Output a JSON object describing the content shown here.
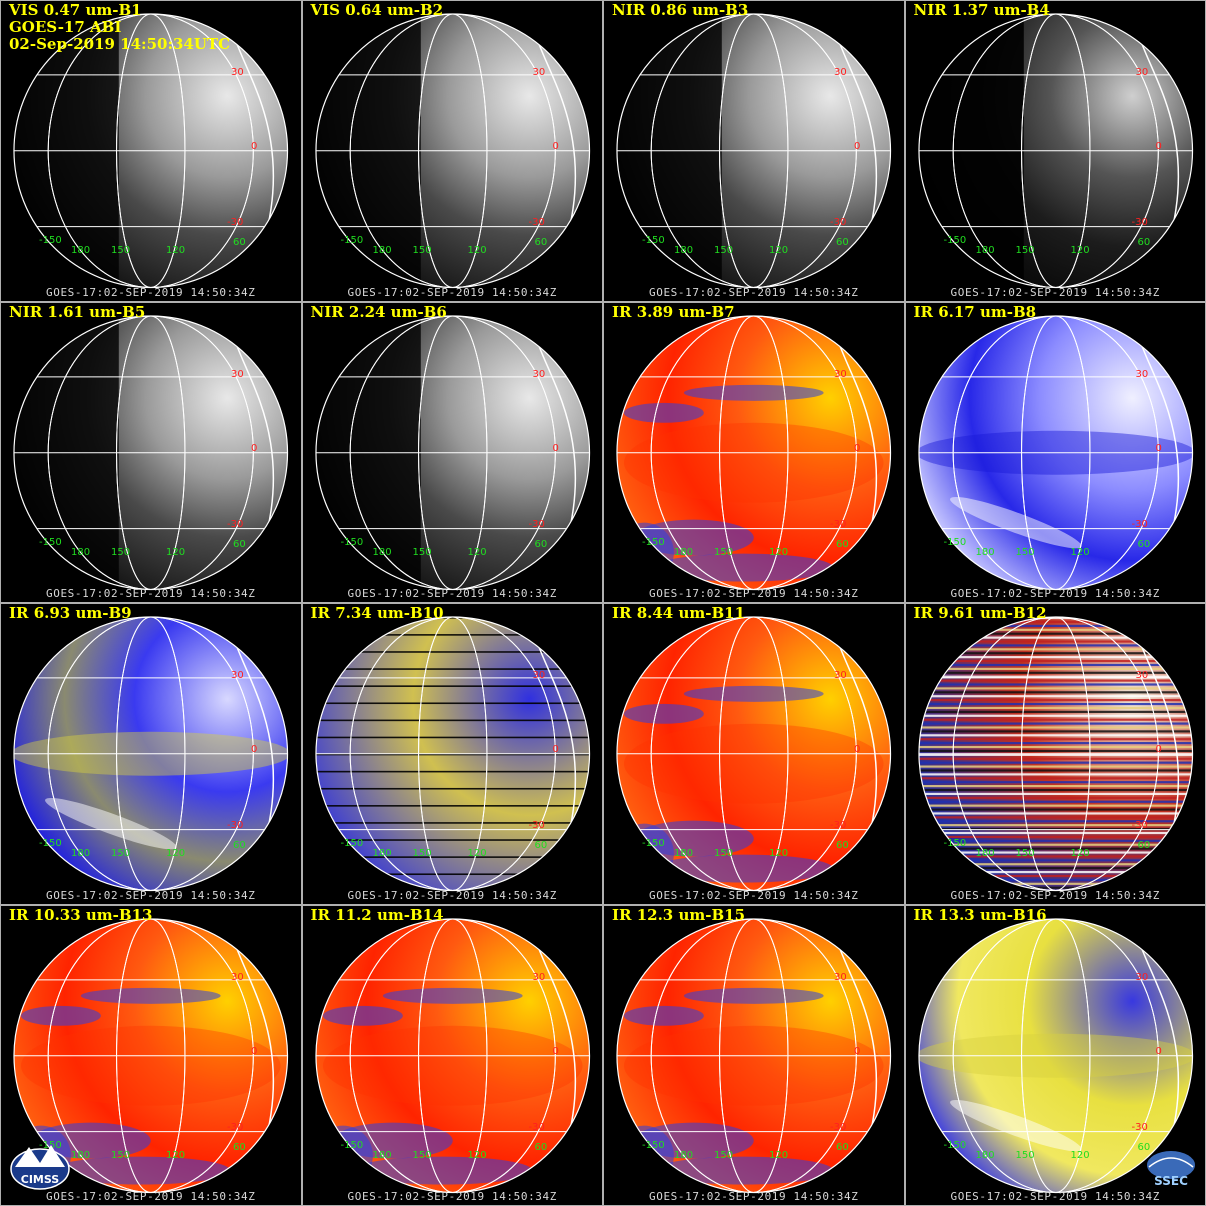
{
  "header_lines": [
    "GOES-17 ABI",
    "02-Sep-2019 14:50:34UTC"
  ],
  "footer_text": "GOES-17:02-SEP-2019 14:50:34Z",
  "grid_labels": {
    "lat": [
      "30",
      "0",
      "-30"
    ],
    "lon": [
      "-150",
      "180",
      "150",
      "120",
      "60"
    ]
  },
  "logos": [
    "CIMSS",
    "SSEC"
  ],
  "panels": [
    {
      "title": "VIS 0.47 um-B1",
      "style": "vis"
    },
    {
      "title": "VIS 0.64 um-B2",
      "style": "vis"
    },
    {
      "title": "NIR 0.86 um-B3",
      "style": "vis"
    },
    {
      "title": "NIR 1.37 um-B4",
      "style": "dark"
    },
    {
      "title": "NIR 1.61 um-B5",
      "style": "vis"
    },
    {
      "title": "NIR 2.24 um-B6",
      "style": "vis"
    },
    {
      "title": "IR 3.89 um-B7",
      "style": "ir"
    },
    {
      "title": "IR 6.17 um-B8",
      "style": "wv"
    },
    {
      "title": "IR 6.93 um-B9",
      "style": "wv2"
    },
    {
      "title": "IR 7.34 um-B10",
      "style": "striped"
    },
    {
      "title": "IR 8.44 um-B11",
      "style": "ir"
    },
    {
      "title": "IR 9.61 um-B12",
      "style": "noise"
    },
    {
      "title": "IR 10.33 um-B13",
      "style": "ir"
    },
    {
      "title": "IR 11.2 um-B14",
      "style": "ir"
    },
    {
      "title": "IR 12.3 um-B15",
      "style": "ir"
    },
    {
      "title": "IR 13.3 um-B16",
      "style": "wv3"
    }
  ],
  "colors": {
    "title": "#ffff00",
    "lat_label": "#ff2020",
    "lon_label": "#20dd20",
    "grid": "#ffffff",
    "footer": "#d8d8d8",
    "divider": "#b0b0b0"
  }
}
